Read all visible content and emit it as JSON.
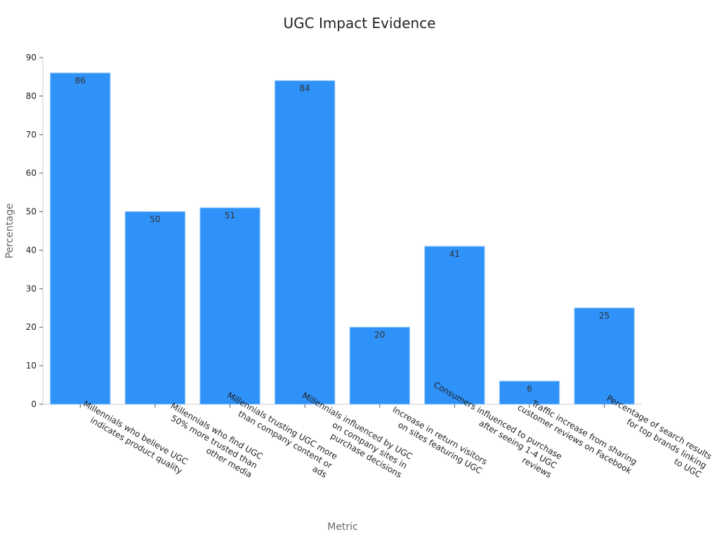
{
  "chart_data": {
    "type": "bar",
    "title": "UGC Impact Evidence",
    "xlabel": "Metric",
    "ylabel": "Percentage",
    "ylim": [
      0,
      90
    ],
    "yticks": [
      0,
      10,
      20,
      30,
      40,
      50,
      60,
      70,
      80,
      90
    ],
    "grid": false,
    "bar_color": "#2e92f8",
    "categories": [
      [
        "Millennials who believe UGC",
        "indicates product quality"
      ],
      [
        "Millennials who find UGC",
        "50% more trusted than",
        "other media"
      ],
      [
        "Millennials trusting UGC more",
        "than company content or",
        "ads"
      ],
      [
        "Millennials influenced by UGC",
        "on company sites in",
        "purchase decisions"
      ],
      [
        "Increase in return visitors",
        "on sites featuring UGC"
      ],
      [
        "Consumers influenced to purchase",
        "after seeing 1-4 UGC",
        "reviews"
      ],
      [
        "Traffic increase from sharing",
        "customer reviews on Facebook"
      ],
      [
        "Percentage of search results",
        "for top brands linking",
        "to UGC"
      ]
    ],
    "values": [
      86,
      50,
      51,
      84,
      20,
      41,
      6,
      25
    ]
  }
}
